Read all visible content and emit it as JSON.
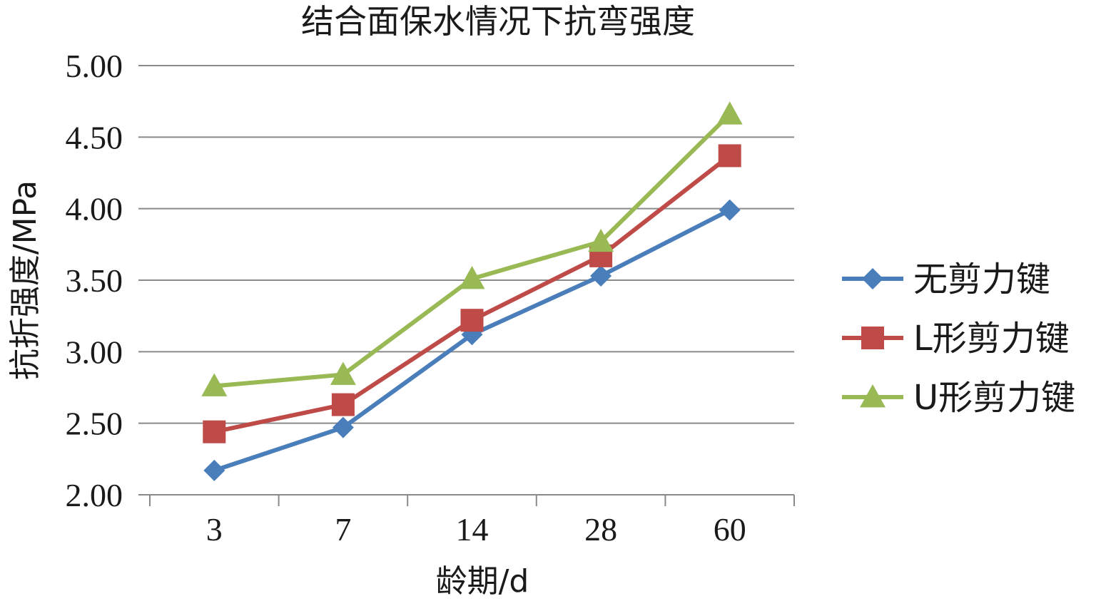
{
  "chart_data": {
    "type": "line",
    "title": "结合面保水情况下抗弯强度",
    "xlabel": "龄期/d",
    "ylabel": "抗折强度/MPa",
    "categories": [
      "3",
      "7",
      "14",
      "28",
      "60"
    ],
    "ylim": [
      2.0,
      5.0
    ],
    "yticks": [
      "2.00",
      "2.50",
      "3.00",
      "3.50",
      "4.00",
      "4.50",
      "5.00"
    ],
    "grid": true,
    "legend_position": "right",
    "series": [
      {
        "name": "无剪力键",
        "color": "#4a7ebb",
        "marker": "diamond",
        "values": [
          2.17,
          2.47,
          3.12,
          3.53,
          3.99
        ]
      },
      {
        "name": "L形剪力键",
        "color": "#be4b48",
        "marker": "square",
        "values": [
          2.44,
          2.63,
          3.22,
          3.67,
          4.37
        ]
      },
      {
        "name": "U形剪力键",
        "color": "#98b954",
        "marker": "triangle",
        "values": [
          2.76,
          2.84,
          3.51,
          3.77,
          4.66
        ]
      }
    ]
  }
}
